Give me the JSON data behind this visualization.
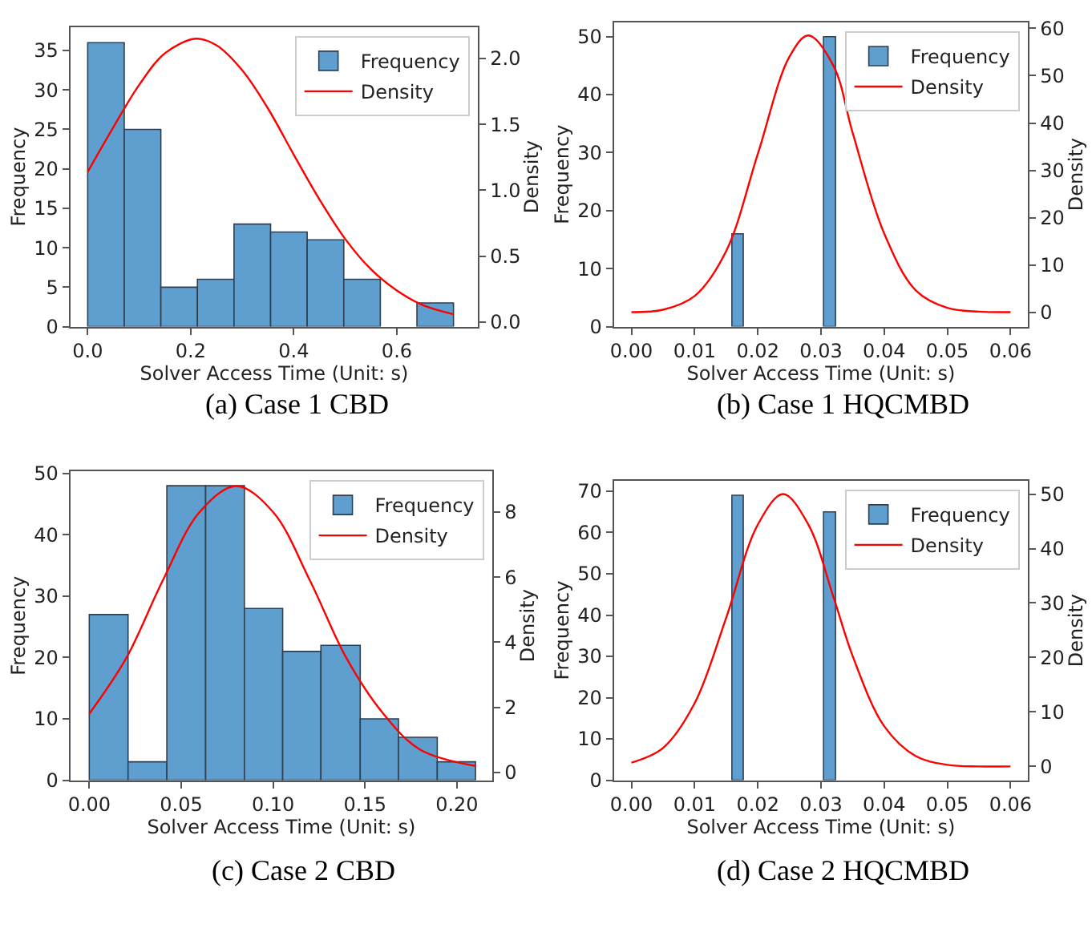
{
  "chart_data": [
    {
      "type": "histogram",
      "title": "(a) Case 1 CBD",
      "xlabel": "Solver Access Time (Unit: s)",
      "ylabel": "Frequency",
      "y2label": "Density",
      "xlim": [
        -0.034,
        0.758
      ],
      "xticks": [
        {
          "value": 0,
          "label": "0.0"
        },
        0.2,
        0.4,
        0.6
      ],
      "ylim": [
        0,
        38
      ],
      "yticks": [
        0,
        5,
        10,
        15,
        20,
        25,
        30,
        35
      ],
      "y2lim": [
        -0.034,
        2.24
      ],
      "y2ticks": [
        {
          "value": 0,
          "label": "0.0"
        },
        0.5,
        {
          "value": 1,
          "label": "1.0"
        },
        1.5,
        {
          "value": 2,
          "label": "2.0"
        }
      ],
      "grid": false,
      "legend": "top right",
      "series": [
        {
          "name": "Frequency",
          "color": "#5f9fcf",
          "bins": [
            0,
            0.071,
            0.142,
            0.213,
            0.284,
            0.355,
            0.426,
            0.497,
            0.568,
            0.639,
            0.71
          ],
          "values": [
            36,
            25,
            5,
            6,
            13,
            12,
            11,
            6,
            0,
            3
          ]
        },
        {
          "name": "Density",
          "type": "line",
          "axis": "y2",
          "color": "#ff0000",
          "x": [
            0,
            0.05,
            0.1,
            0.15,
            0.21,
            0.25,
            0.3,
            0.35,
            0.4,
            0.45,
            0.5,
            0.55,
            0.6,
            0.65,
            0.71
          ],
          "values": [
            1.14,
            1.48,
            1.8,
            2.04,
            2.15,
            2.1,
            1.91,
            1.62,
            1.27,
            0.93,
            0.63,
            0.4,
            0.24,
            0.13,
            0.06
          ]
        }
      ]
    },
    {
      "type": "histogram",
      "title": "(b) Case 1 HQCMBD",
      "xlabel": "Solver Access Time (Unit: s)",
      "ylabel": "Frequency",
      "y2label": "Density",
      "xlim": [
        -0.0028,
        0.0628
      ],
      "xticks": [
        {
          "value": 0,
          "label": "0.00"
        },
        {
          "value": 0.01,
          "label": "0.01"
        },
        {
          "value": 0.02,
          "label": "0.02"
        },
        {
          "value": 0.03,
          "label": "0.03"
        },
        {
          "value": 0.04,
          "label": "0.04"
        },
        {
          "value": 0.05,
          "label": "0.05"
        },
        {
          "value": 0.06,
          "label": "0.06"
        }
      ],
      "ylim": [
        0,
        52.5
      ],
      "yticks": [
        0,
        10,
        20,
        30,
        40,
        50
      ],
      "y2lim": [
        -2.96,
        61.3
      ],
      "y2ticks": [
        0,
        10,
        20,
        30,
        40,
        50,
        60
      ],
      "grid": false,
      "legend": "top right",
      "series": [
        {
          "name": "Frequency",
          "color": "#5f9fcf",
          "bins": [
            0.0159,
            0.0177,
            0.0304,
            0.0323
          ],
          "values": [
            16,
            0,
            50
          ]
        },
        {
          "name": "Density",
          "type": "line",
          "axis": "y2",
          "color": "#ff0000",
          "x": [
            0,
            0.005,
            0.01,
            0.015,
            0.02,
            0.025,
            0.028,
            0.032,
            0.035,
            0.04,
            0.045,
            0.05,
            0.055,
            0.06
          ],
          "values": [
            0.1,
            0.6,
            3.5,
            13,
            33.5,
            54,
            58.5,
            52,
            38,
            16.7,
            4.7,
            1,
            0.2,
            0.1
          ]
        }
      ]
    },
    {
      "type": "histogram",
      "title": "(c) Case 2 CBD",
      "xlabel": "Solver Access Time (Unit: s)",
      "ylabel": "Frequency",
      "y2label": "Density",
      "xlim": [
        -0.0104,
        0.2194
      ],
      "xticks": [
        {
          "value": 0,
          "label": "0.00"
        },
        {
          "value": 0.05,
          "label": "0.05"
        },
        {
          "value": 0.1,
          "label": "0.10"
        },
        {
          "value": 0.15,
          "label": "0.15"
        },
        {
          "value": 0.2,
          "label": "0.20"
        }
      ],
      "ylim": [
        0,
        50.4
      ],
      "yticks": [
        0,
        10,
        20,
        30,
        40,
        50
      ],
      "y2lim": [
        -0.24,
        9.26
      ],
      "y2ticks": [
        0,
        2,
        4,
        6,
        8
      ],
      "grid": false,
      "legend": "top right",
      "series": [
        {
          "name": "Frequency",
          "color": "#5f9fcf",
          "bins": [
            0,
            0.0211,
            0.0422,
            0.0633,
            0.0844,
            0.1052,
            0.126,
            0.1474,
            0.1682,
            0.1893,
            0.2101
          ],
          "values": [
            27,
            3,
            48,
            48,
            28,
            21,
            22,
            10,
            7,
            3
          ]
        },
        {
          "name": "Density",
          "type": "line",
          "axis": "y2",
          "color": "#ff0000",
          "x": [
            0,
            0.02,
            0.04,
            0.06,
            0.08,
            0.1,
            0.12,
            0.14,
            0.16,
            0.18,
            0.21
          ],
          "values": [
            1.8,
            3.5,
            5.9,
            8,
            8.8,
            8,
            5.9,
            3.5,
            1.8,
            0.7,
            0.2
          ]
        }
      ]
    },
    {
      "type": "histogram",
      "title": "(d) Case 2 HQCMBD",
      "xlabel": "Solver Access Time (Unit: s)",
      "ylabel": "Frequency",
      "y2label": "Density",
      "xlim": [
        -0.0028,
        0.0628
      ],
      "xticks": [
        {
          "value": 0,
          "label": "0.00"
        },
        {
          "value": 0.01,
          "label": "0.01"
        },
        {
          "value": 0.02,
          "label": "0.02"
        },
        {
          "value": 0.03,
          "label": "0.03"
        },
        {
          "value": 0.04,
          "label": "0.04"
        },
        {
          "value": 0.05,
          "label": "0.05"
        },
        {
          "value": 0.06,
          "label": "0.06"
        }
      ],
      "ylim": [
        0,
        72.6
      ],
      "yticks": [
        0,
        10,
        20,
        30,
        40,
        50,
        60,
        70
      ],
      "y2lim": [
        -2.53,
        52.5
      ],
      "y2ticks": [
        0,
        10,
        20,
        30,
        40,
        50
      ],
      "grid": false,
      "legend": "top right",
      "series": [
        {
          "name": "Frequency",
          "color": "#5f9fcf",
          "bins": [
            0.0159,
            0.0177,
            0.0304,
            0.0323
          ],
          "values": [
            69,
            0,
            65
          ]
        },
        {
          "name": "Density",
          "type": "line",
          "axis": "y2",
          "color": "#ff0000",
          "x": [
            0,
            0.005,
            0.01,
            0.015,
            0.02,
            0.024,
            0.028,
            0.032,
            0.035,
            0.04,
            0.045,
            0.05,
            0.055,
            0.06
          ],
          "values": [
            0.7,
            3.4,
            11.6,
            27.3,
            44.4,
            50,
            44.4,
            31,
            20.3,
            7.4,
            1.9,
            0.3,
            0.0,
            0
          ]
        }
      ]
    }
  ]
}
